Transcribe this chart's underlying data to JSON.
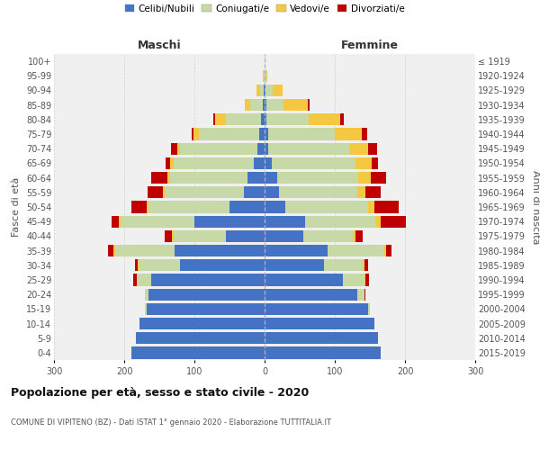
{
  "age_groups": [
    "0-4",
    "5-9",
    "10-14",
    "15-19",
    "20-24",
    "25-29",
    "30-34",
    "35-39",
    "40-44",
    "45-49",
    "50-54",
    "55-59",
    "60-64",
    "65-69",
    "70-74",
    "75-79",
    "80-84",
    "85-89",
    "90-94",
    "95-99",
    "100+"
  ],
  "birth_years": [
    "2015-2019",
    "2010-2014",
    "2005-2009",
    "2000-2004",
    "1995-1999",
    "1990-1994",
    "1985-1989",
    "1980-1984",
    "1975-1979",
    "1970-1974",
    "1965-1969",
    "1960-1964",
    "1955-1959",
    "1950-1954",
    "1945-1949",
    "1940-1944",
    "1935-1939",
    "1930-1934",
    "1925-1929",
    "1920-1924",
    "≤ 1919"
  ],
  "males": {
    "celibi": [
      190,
      183,
      178,
      168,
      165,
      162,
      120,
      128,
      55,
      100,
      50,
      30,
      25,
      15,
      10,
      8,
      5,
      2,
      1,
      0,
      0
    ],
    "coniugati": [
      0,
      0,
      0,
      2,
      5,
      20,
      60,
      85,
      75,
      105,
      115,
      112,
      110,
      115,
      110,
      85,
      50,
      18,
      5,
      1,
      0
    ],
    "vedovi": [
      0,
      0,
      0,
      0,
      0,
      0,
      1,
      2,
      2,
      3,
      3,
      3,
      4,
      5,
      5,
      8,
      15,
      8,
      5,
      1,
      0
    ],
    "divorziati": [
      0,
      0,
      0,
      0,
      0,
      5,
      4,
      8,
      10,
      10,
      22,
      22,
      22,
      6,
      8,
      3,
      3,
      0,
      0,
      0,
      0
    ]
  },
  "females": {
    "nubili": [
      165,
      162,
      157,
      148,
      132,
      112,
      85,
      90,
      55,
      58,
      30,
      20,
      18,
      10,
      5,
      5,
      3,
      2,
      1,
      0,
      0
    ],
    "coniugate": [
      0,
      0,
      0,
      2,
      10,
      30,
      55,
      80,
      70,
      100,
      118,
      112,
      115,
      120,
      115,
      95,
      60,
      25,
      10,
      2,
      0
    ],
    "vedove": [
      0,
      0,
      0,
      0,
      0,
      2,
      2,
      3,
      5,
      8,
      8,
      12,
      18,
      22,
      28,
      38,
      45,
      35,
      15,
      2,
      0
    ],
    "divorziate": [
      0,
      0,
      0,
      0,
      2,
      5,
      5,
      8,
      10,
      35,
      35,
      22,
      22,
      10,
      12,
      8,
      5,
      2,
      0,
      0,
      0
    ]
  },
  "colors": {
    "celibi": "#4472C4",
    "coniugati": "#C8D9A8",
    "vedovi": "#F5C842",
    "divorziati": "#C00000"
  },
  "xlim": 300,
  "title": "Popolazione per età, sesso e stato civile - 2020",
  "subtitle": "COMUNE DI VIPITENO (BZ) - Dati ISTAT 1° gennaio 2020 - Elaborazione TUTTITALIA.IT",
  "ylabel_left": "Fasce di età",
  "ylabel_right": "Anni di nascita",
  "xlabel_left": "Maschi",
  "xlabel_right": "Femmine",
  "legend_labels": [
    "Celibi/Nubili",
    "Coniugati/e",
    "Vedovi/e",
    "Divorziati/e"
  ],
  "bg_color": "#f0f0f0",
  "grid_color": "#cccccc"
}
